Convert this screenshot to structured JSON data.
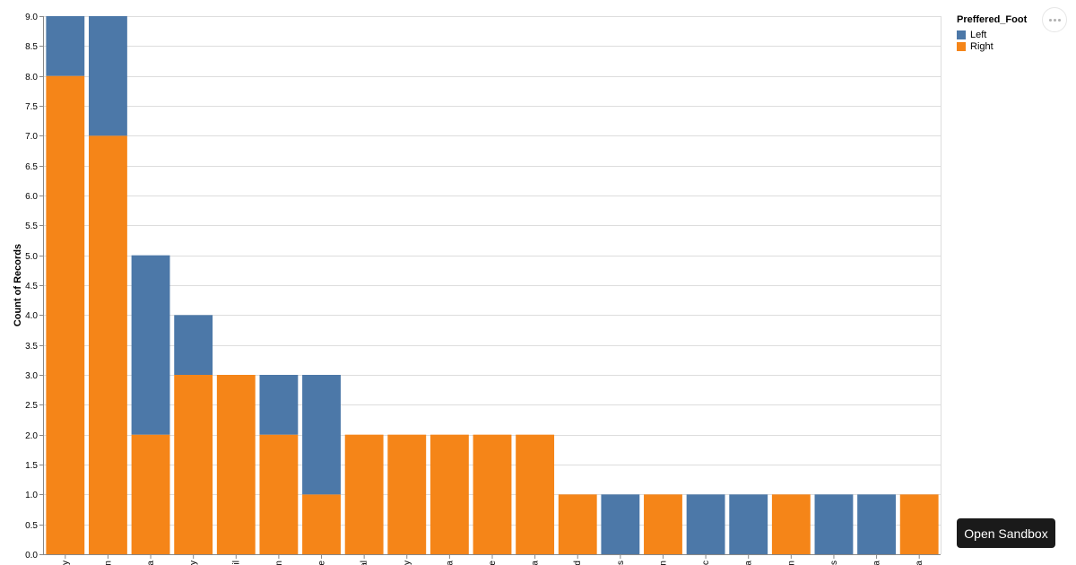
{
  "chart_data": {
    "type": "bar",
    "stacked": true,
    "ylabel": "Count of Records",
    "xlabel": "",
    "ylim": [
      0,
      9
    ],
    "yticks": [
      "0.0",
      "0.5",
      "1.0",
      "1.5",
      "2.0",
      "2.5",
      "3.0",
      "3.5",
      "4.0",
      "4.5",
      "5.0",
      "5.5",
      "6.0",
      "6.5",
      "7.0",
      "7.5",
      "8.0",
      "8.5",
      "9.0"
    ],
    "grid": true,
    "legend_position": "top-right",
    "categories": [
      "y",
      "n",
      "a",
      "y",
      "il",
      "n",
      "e",
      "al",
      "y",
      "a",
      "e",
      "a",
      "d",
      "s",
      "n",
      "c",
      "a",
      "n",
      "s",
      "a",
      "a"
    ],
    "series": [
      {
        "name": "Right",
        "color": "#f58518",
        "values": [
          8,
          7,
          2,
          3,
          3,
          2,
          1,
          2,
          2,
          2,
          2,
          2,
          1,
          0,
          1,
          0,
          0,
          1,
          0,
          0,
          1
        ]
      },
      {
        "name": "Left",
        "color": "#4c78a8",
        "values": [
          1,
          2,
          3,
          1,
          0,
          1,
          2,
          0,
          0,
          0,
          0,
          0,
          0,
          1,
          0,
          1,
          1,
          0,
          1,
          1,
          0
        ]
      }
    ]
  },
  "legend": {
    "title": "Preffered_Foot",
    "items": [
      {
        "label": "Left",
        "color": "#4c78a8"
      },
      {
        "label": "Right",
        "color": "#f58518"
      }
    ]
  },
  "actions": {
    "open_sandbox": "Open Sandbox"
  }
}
